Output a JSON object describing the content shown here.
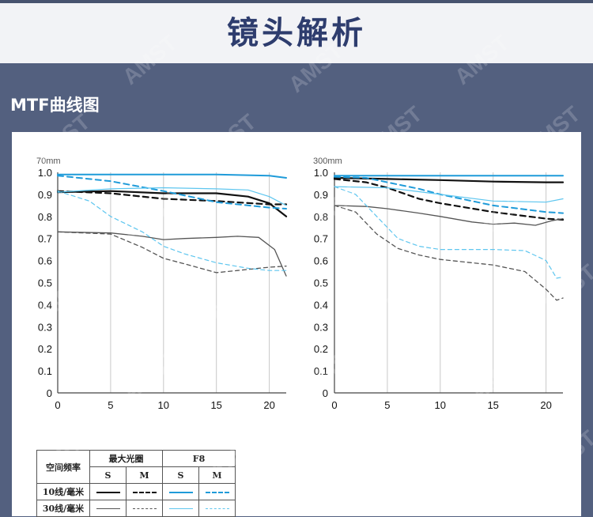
{
  "header": {
    "title": "镜头解析"
  },
  "section": {
    "title": "MTF曲线图"
  },
  "watermark": "AMST",
  "colors": {
    "black": "#111111",
    "gray": "#555555",
    "blue": "#1f9bd9",
    "lightblue": "#5ec6ef"
  },
  "legend": {
    "row_header": "空间频率",
    "group_max": "最大光圈",
    "group_f8": "F8",
    "s": "S",
    "m": "M",
    "row_10": "10线/毫米",
    "row_30": "30线/毫米"
  },
  "chart_data": [
    {
      "type": "line",
      "title": "70mm",
      "xlim": [
        0,
        21.6
      ],
      "ylim": [
        0,
        1.0
      ],
      "xticks": [
        0,
        5,
        10,
        15,
        20
      ],
      "yticks": [
        "0",
        "0.1",
        "0.2",
        "0.3",
        "0.4",
        "0.5",
        "0.6",
        "0.7",
        "0.8",
        "0.9",
        "1.0"
      ],
      "grid": "vertical",
      "series": [
        {
          "style": "max-10-S",
          "color": "black",
          "dash": false,
          "width": 2.2,
          "x": [
            0,
            5,
            10,
            15,
            18,
            20,
            21.6
          ],
          "y": [
            0.91,
            0.915,
            0.905,
            0.905,
            0.89,
            0.86,
            0.8
          ]
        },
        {
          "style": "max-10-M",
          "color": "black",
          "dash": true,
          "width": 2.2,
          "x": [
            0,
            5,
            10,
            15,
            20,
            21.6
          ],
          "y": [
            0.915,
            0.905,
            0.88,
            0.87,
            0.855,
            0.855
          ]
        },
        {
          "style": "max-30-S",
          "color": "gray",
          "dash": false,
          "width": 1.3,
          "x": [
            0,
            5,
            8,
            10,
            12,
            15,
            17,
            19,
            20.5,
            21.6
          ],
          "y": [
            0.73,
            0.725,
            0.71,
            0.695,
            0.7,
            0.705,
            0.71,
            0.705,
            0.65,
            0.53
          ]
        },
        {
          "style": "max-30-M",
          "color": "gray",
          "dash": true,
          "width": 1.3,
          "x": [
            0,
            5,
            8,
            10,
            12,
            15,
            17,
            20,
            21.6
          ],
          "y": [
            0.73,
            0.72,
            0.66,
            0.61,
            0.585,
            0.545,
            0.555,
            0.57,
            0.575
          ]
        },
        {
          "style": "f8-10-S",
          "color": "blue",
          "dash": false,
          "width": 2,
          "x": [
            0,
            5,
            10,
            15,
            20,
            21.6
          ],
          "y": [
            0.99,
            0.99,
            0.99,
            0.99,
            0.985,
            0.975
          ]
        },
        {
          "style": "f8-10-M",
          "color": "blue",
          "dash": true,
          "width": 2,
          "x": [
            0,
            5,
            10,
            15,
            20,
            21.6
          ],
          "y": [
            0.985,
            0.96,
            0.915,
            0.865,
            0.84,
            0.835
          ]
        },
        {
          "style": "f8-30-S",
          "color": "lightblue",
          "dash": false,
          "width": 1.2,
          "x": [
            0,
            5,
            10,
            15,
            18,
            20,
            21.6
          ],
          "y": [
            0.91,
            0.925,
            0.93,
            0.925,
            0.92,
            0.89,
            0.85
          ]
        },
        {
          "style": "f8-30-M",
          "color": "lightblue",
          "dash": true,
          "width": 1.2,
          "x": [
            0,
            3,
            5,
            8,
            10,
            12,
            15,
            18,
            20,
            21.6
          ],
          "y": [
            0.915,
            0.87,
            0.8,
            0.73,
            0.665,
            0.63,
            0.59,
            0.565,
            0.555,
            0.555
          ]
        }
      ]
    },
    {
      "type": "line",
      "title": "300mm",
      "xlim": [
        0,
        21.6
      ],
      "ylim": [
        0,
        1.0
      ],
      "xticks": [
        0,
        5,
        10,
        15,
        20
      ],
      "yticks": [
        "0",
        "0.1",
        "0.2",
        "0.3",
        "0.4",
        "0.5",
        "0.6",
        "0.7",
        "0.8",
        "0.9",
        "1.0"
      ],
      "grid": "vertical",
      "series": [
        {
          "style": "max-10-S",
          "color": "black",
          "dash": false,
          "width": 2.2,
          "x": [
            0,
            5,
            10,
            15,
            20,
            21.6
          ],
          "y": [
            0.975,
            0.97,
            0.965,
            0.958,
            0.955,
            0.955
          ]
        },
        {
          "style": "max-10-M",
          "color": "black",
          "dash": true,
          "width": 2.2,
          "x": [
            0,
            3,
            5,
            8,
            10,
            15,
            20,
            21.6
          ],
          "y": [
            0.97,
            0.955,
            0.93,
            0.88,
            0.86,
            0.82,
            0.79,
            0.785
          ]
        },
        {
          "style": "max-30-S",
          "color": "gray",
          "dash": false,
          "width": 1.3,
          "x": [
            0,
            3,
            5,
            8,
            10,
            13,
            15,
            17,
            19,
            20.5,
            21.6
          ],
          "y": [
            0.85,
            0.845,
            0.835,
            0.815,
            0.8,
            0.775,
            0.765,
            0.77,
            0.76,
            0.78,
            0.79
          ]
        },
        {
          "style": "max-30-M",
          "color": "gray",
          "dash": true,
          "width": 1.3,
          "x": [
            0,
            2,
            4,
            6,
            8,
            10,
            15,
            18,
            20,
            21,
            21.6
          ],
          "y": [
            0.85,
            0.82,
            0.72,
            0.655,
            0.625,
            0.605,
            0.58,
            0.55,
            0.47,
            0.42,
            0.43
          ]
        },
        {
          "style": "f8-10-S",
          "color": "blue",
          "dash": false,
          "width": 2,
          "x": [
            0,
            5,
            10,
            15,
            20,
            21.6
          ],
          "y": [
            0.985,
            0.985,
            0.985,
            0.985,
            0.985,
            0.985
          ]
        },
        {
          "style": "f8-10-M",
          "color": "blue",
          "dash": true,
          "width": 2,
          "x": [
            0,
            3,
            5,
            8,
            10,
            15,
            20,
            21.6
          ],
          "y": [
            0.98,
            0.975,
            0.955,
            0.925,
            0.9,
            0.85,
            0.82,
            0.815
          ]
        },
        {
          "style": "f8-30-S",
          "color": "lightblue",
          "dash": false,
          "width": 1.2,
          "x": [
            0,
            5,
            10,
            15,
            20,
            21.6
          ],
          "y": [
            0.935,
            0.93,
            0.9,
            0.87,
            0.865,
            0.88
          ]
        },
        {
          "style": "f8-30-M",
          "color": "lightblue",
          "dash": true,
          "width": 1.2,
          "x": [
            0,
            2,
            4,
            6,
            8,
            10,
            15,
            18,
            20,
            21,
            21.6
          ],
          "y": [
            0.935,
            0.9,
            0.8,
            0.7,
            0.665,
            0.65,
            0.65,
            0.645,
            0.6,
            0.52,
            0.525
          ]
        }
      ]
    }
  ]
}
